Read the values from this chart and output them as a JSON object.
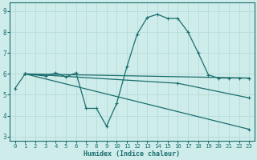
{
  "xlabel": "Humidex (Indice chaleur)",
  "xlim": [
    -0.5,
    23.5
  ],
  "ylim": [
    2.8,
    9.4
  ],
  "yticks": [
    3,
    4,
    5,
    6,
    7,
    8,
    9
  ],
  "xticks": [
    0,
    1,
    2,
    3,
    4,
    5,
    6,
    7,
    8,
    9,
    10,
    11,
    12,
    13,
    14,
    15,
    16,
    17,
    18,
    19,
    20,
    21,
    22,
    23
  ],
  "bg_color": "#ceecea",
  "grid_color": "#afd8d5",
  "line_color": "#1a6e6e",
  "line1": {
    "x": [
      0,
      1,
      3,
      4,
      5,
      6,
      7,
      8,
      9,
      10,
      11,
      12,
      13,
      14,
      15,
      16,
      17,
      18,
      19,
      20,
      21,
      22,
      23
    ],
    "y": [
      5.3,
      6.0,
      5.9,
      6.05,
      5.85,
      6.05,
      4.35,
      4.35,
      3.5,
      4.6,
      6.35,
      7.9,
      8.7,
      8.85,
      8.65,
      8.65,
      8.0,
      7.0,
      5.95,
      5.8,
      5.8,
      5.8,
      5.8
    ]
  },
  "line2": {
    "x": [
      1,
      23
    ],
    "y": [
      6.0,
      5.8
    ]
  },
  "line3": {
    "x": [
      1,
      16,
      23
    ],
    "y": [
      6.0,
      5.55,
      4.85
    ]
  },
  "line4": {
    "x": [
      1,
      23
    ],
    "y": [
      6.0,
      3.35
    ]
  }
}
